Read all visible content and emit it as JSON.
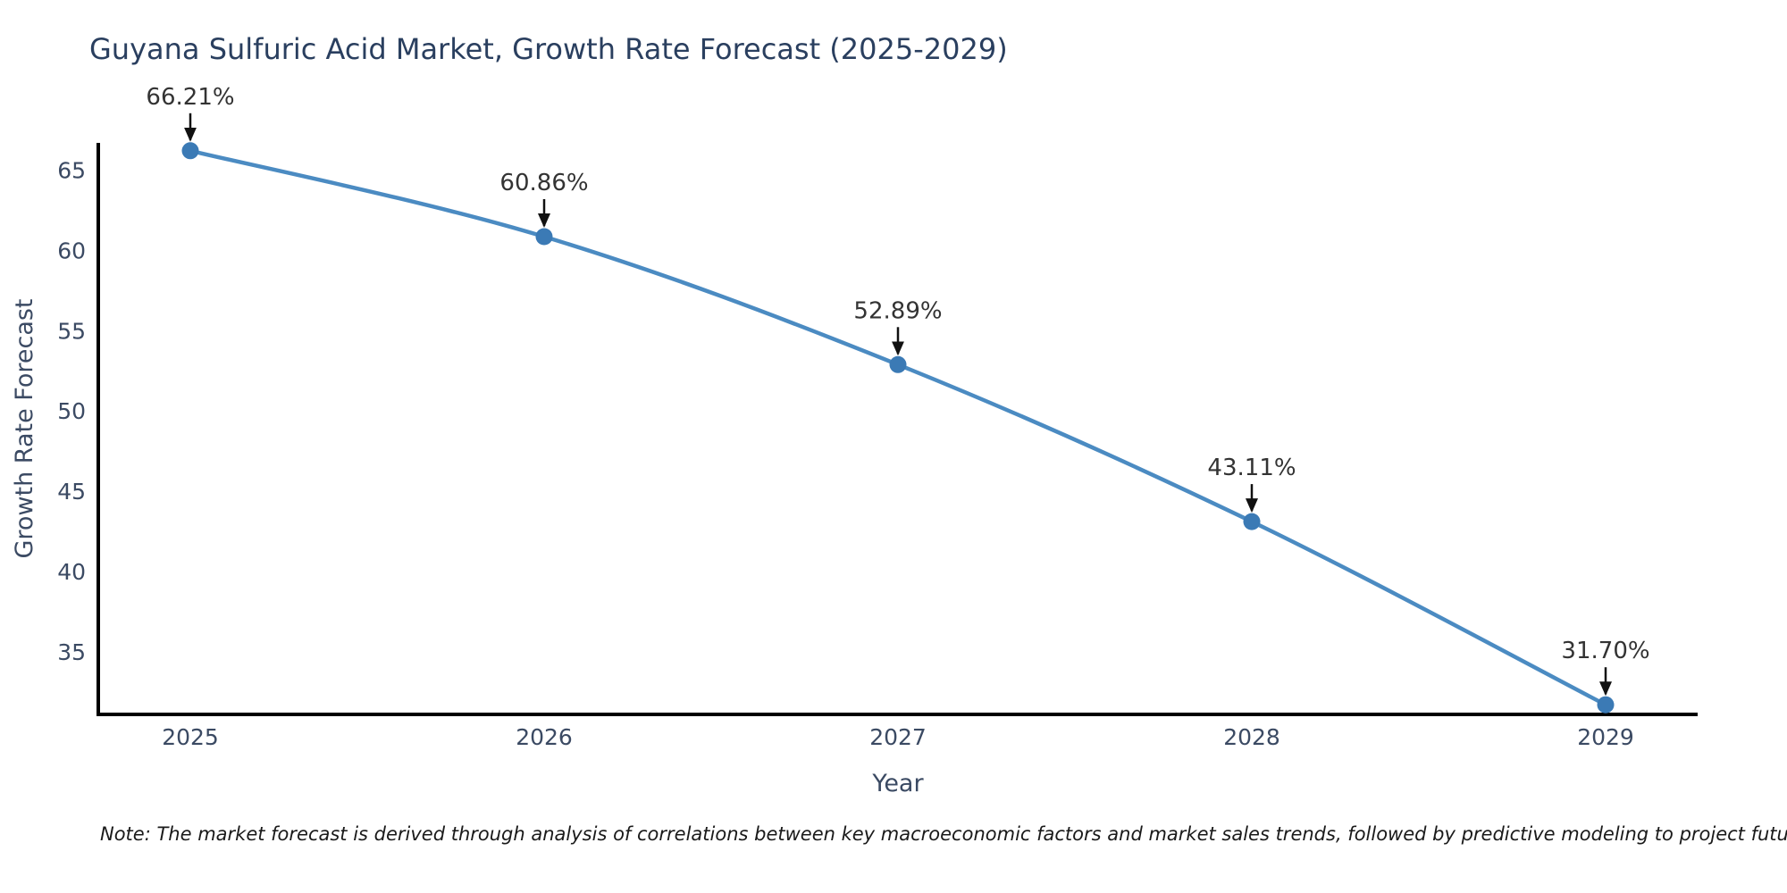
{
  "chart_data": {
    "type": "line",
    "title": "Guyana Sulfuric Acid Market, Growth Rate Forecast (2025-2029)",
    "xlabel": "Year",
    "ylabel": "Growth Rate Forecast",
    "categories": [
      2025,
      2026,
      2027,
      2028,
      2029
    ],
    "values": [
      66.21,
      60.86,
      52.89,
      43.11,
      31.7
    ],
    "point_labels": [
      "66.21%",
      "60.86%",
      "52.89%",
      "43.11%",
      "31.70%"
    ],
    "yticks": [
      35,
      40,
      45,
      50,
      55,
      60,
      65
    ],
    "ylim": [
      31.1,
      66.7
    ],
    "grid": false,
    "legend": "none",
    "line_shape": "spline",
    "colors": {
      "line": "#4b8bc2",
      "marker": "#3b7ab5",
      "arrow": "#111111",
      "axis": "#000000",
      "title": "#2a3f5f",
      "tick": "#3b4a63",
      "annotation": "#333333"
    },
    "note": "Note: The market forecast is derived through analysis of correlations between key macroeconomic factors and market sales trends, followed by predictive modeling to project future sales"
  }
}
